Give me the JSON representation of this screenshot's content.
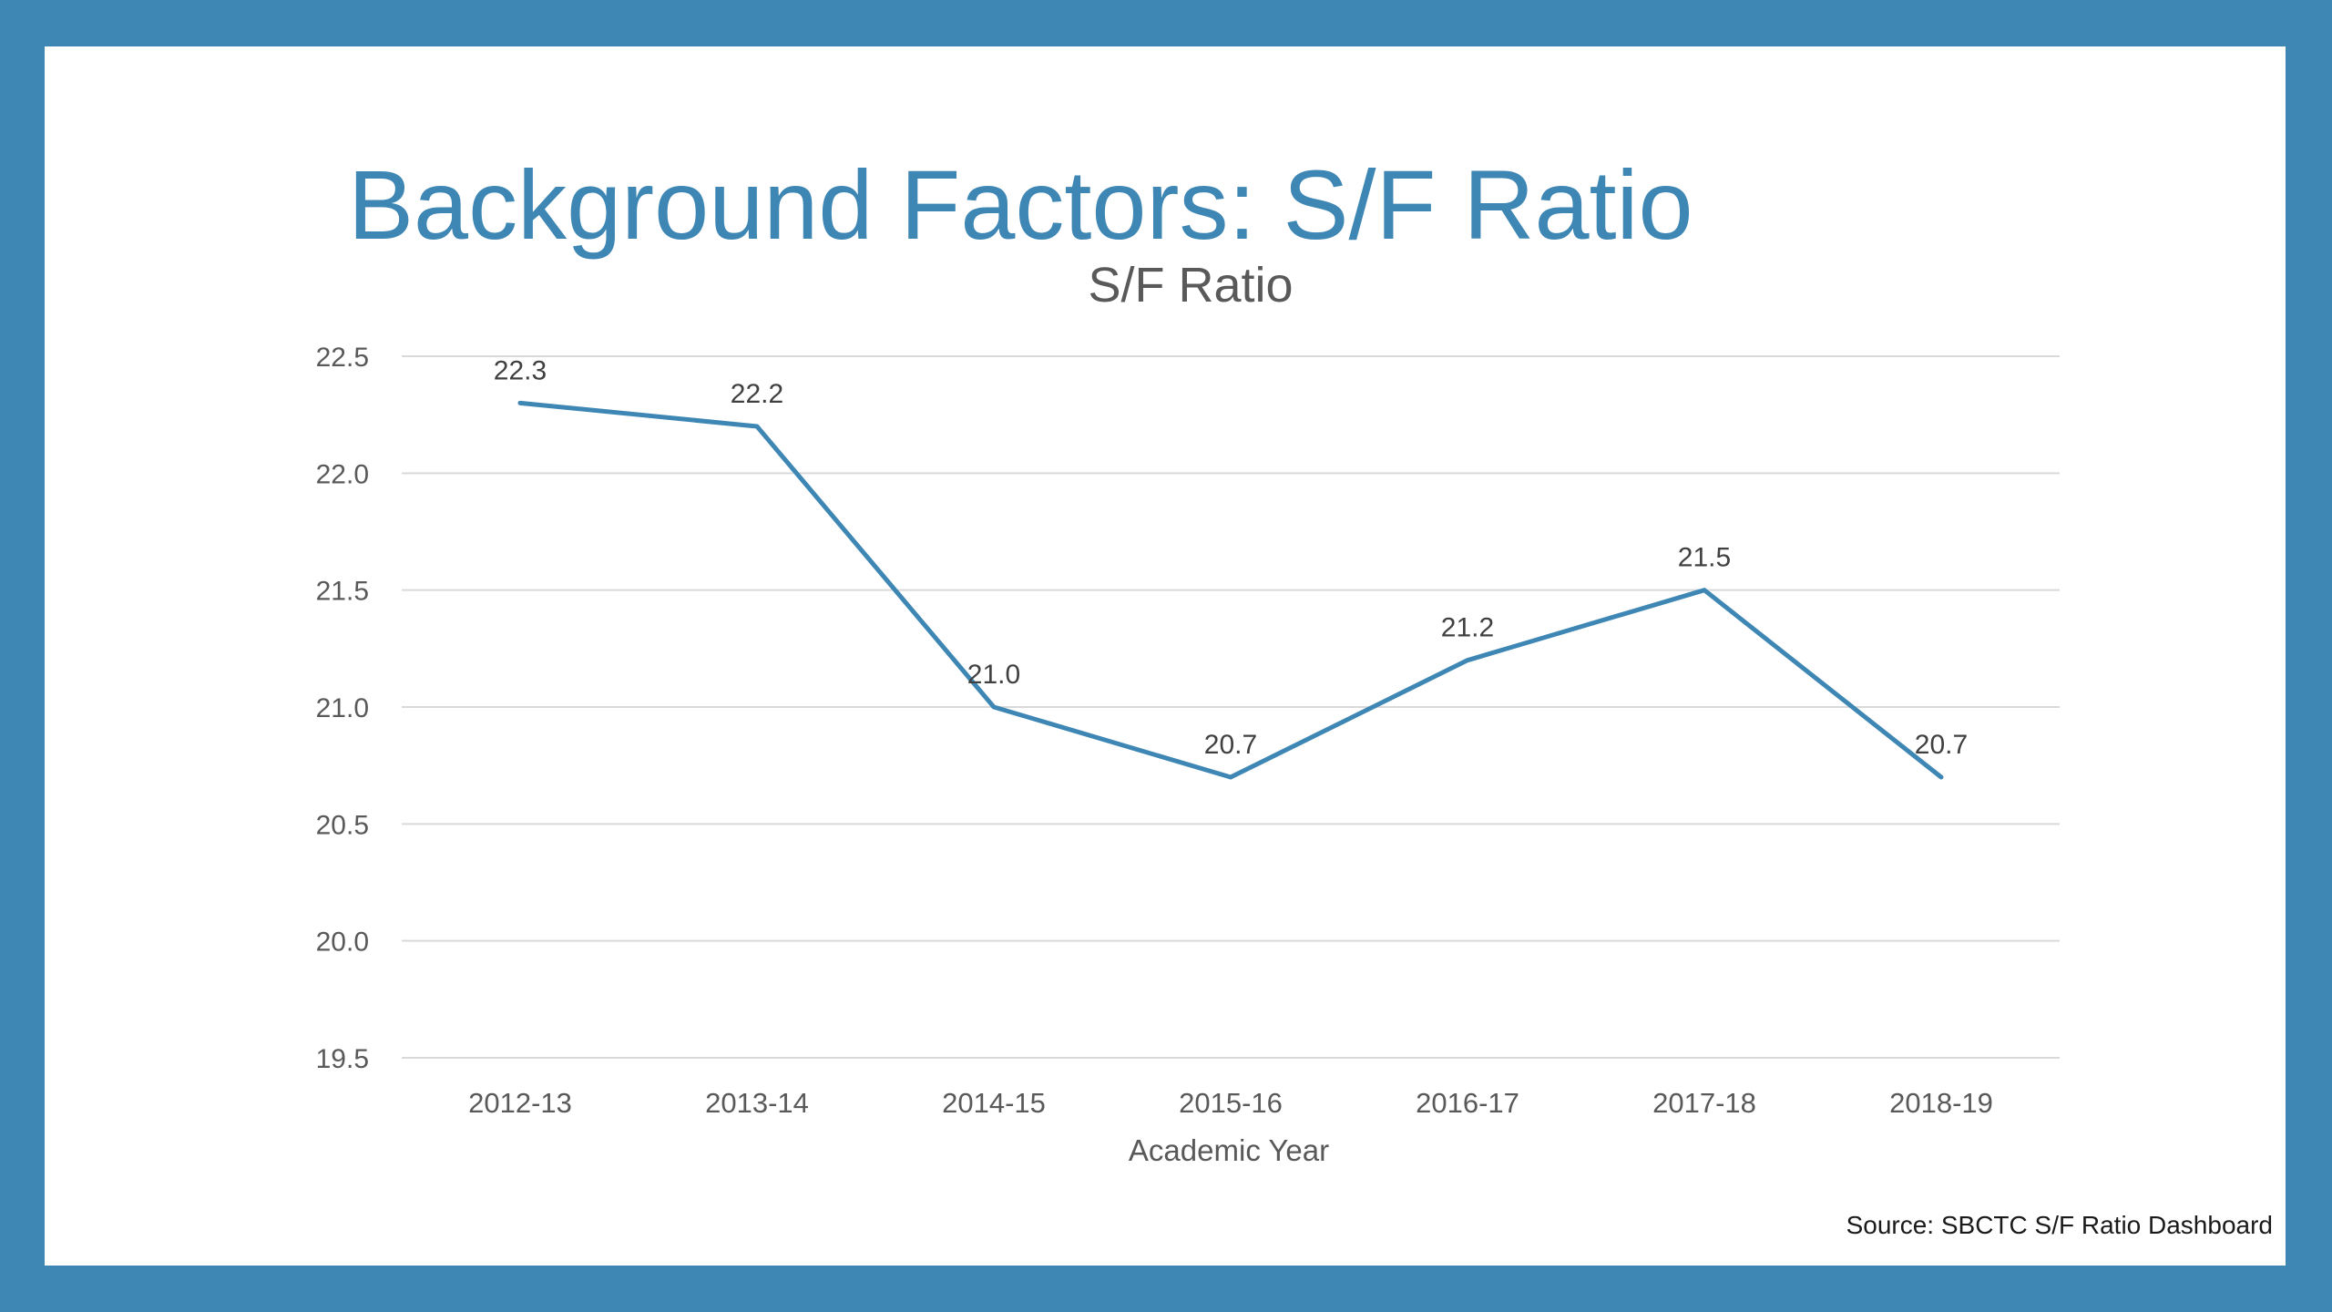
{
  "slide": {
    "title": "Background Factors: S/F Ratio",
    "source": "Source: SBCTC S/F Ratio Dashboard"
  },
  "colors": {
    "frame": "#3e87b4",
    "title": "#3e87b4",
    "line": "#3e87b4",
    "grid": "#d9d9d9",
    "text": "#595959"
  },
  "chart_data": {
    "type": "line",
    "title": "S/F Ratio",
    "xlabel": "Academic Year",
    "ylabel": "",
    "categories": [
      "2012-13",
      "2013-14",
      "2014-15",
      "2015-16",
      "2016-17",
      "2017-18",
      "2018-19"
    ],
    "series": [
      {
        "values": [
          22.3,
          22.2,
          21.0,
          20.7,
          21.2,
          21.5,
          20.7
        ]
      }
    ],
    "ylim": [
      19.5,
      22.5
    ],
    "yticks": [
      "19.5",
      "20.0",
      "20.5",
      "21.0",
      "21.5",
      "22.0",
      "22.5"
    ],
    "grid": true,
    "data_labels": true
  }
}
